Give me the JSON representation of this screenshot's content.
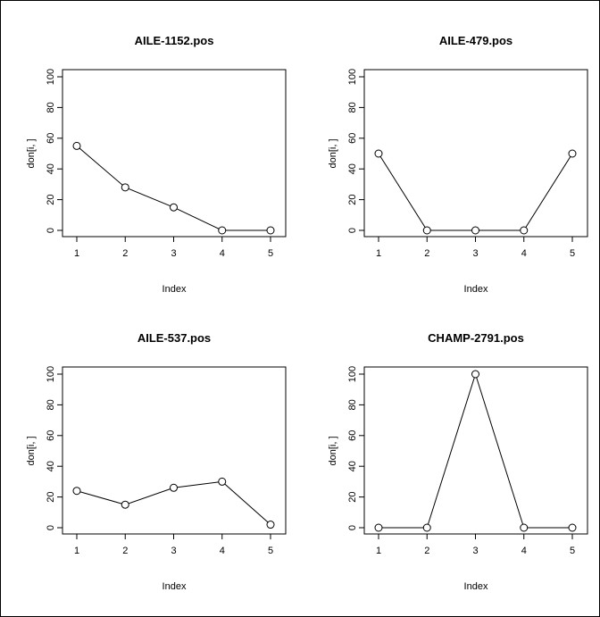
{
  "chart_data": [
    {
      "type": "line",
      "title": "AILE-1152.pos",
      "xlabel": "Index",
      "ylabel": "don[i, ]",
      "x": [
        1,
        2,
        3,
        4,
        5
      ],
      "values": [
        55,
        28,
        15,
        0,
        0
      ],
      "xlim": [
        1,
        5
      ],
      "ylim": [
        0,
        100
      ],
      "xticks": [
        "1",
        "2",
        "3",
        "4",
        "5"
      ],
      "yticks": [
        "0",
        "20",
        "40",
        "60",
        "80",
        "100"
      ],
      "marker": "open-circle",
      "grid": false
    },
    {
      "type": "line",
      "title": "AILE-479.pos",
      "xlabel": "Index",
      "ylabel": "don[i, ]",
      "x": [
        1,
        2,
        3,
        4,
        5
      ],
      "values": [
        50,
        0,
        0,
        0,
        50
      ],
      "xlim": [
        1,
        5
      ],
      "ylim": [
        0,
        100
      ],
      "xticks": [
        "1",
        "2",
        "3",
        "4",
        "5"
      ],
      "yticks": [
        "0",
        "20",
        "40",
        "60",
        "80",
        "100"
      ],
      "marker": "open-circle",
      "grid": false
    },
    {
      "type": "line",
      "title": "AILE-537.pos",
      "xlabel": "Index",
      "ylabel": "don[i, ]",
      "x": [
        1,
        2,
        3,
        4,
        5
      ],
      "values": [
        24,
        15,
        26,
        30,
        2
      ],
      "xlim": [
        1,
        5
      ],
      "ylim": [
        0,
        100
      ],
      "xticks": [
        "1",
        "2",
        "3",
        "4",
        "5"
      ],
      "yticks": [
        "0",
        "20",
        "40",
        "60",
        "80",
        "100"
      ],
      "marker": "open-circle",
      "grid": false
    },
    {
      "type": "line",
      "title": "CHAMP-2791.pos",
      "xlabel": "Index",
      "ylabel": "don[i, ]",
      "x": [
        1,
        2,
        3,
        4,
        5
      ],
      "values": [
        0,
        0,
        100,
        0,
        0
      ],
      "xlim": [
        1,
        5
      ],
      "ylim": [
        0,
        100
      ],
      "xticks": [
        "1",
        "2",
        "3",
        "4",
        "5"
      ],
      "yticks": [
        "0",
        "20",
        "40",
        "60",
        "80",
        "100"
      ],
      "marker": "open-circle",
      "grid": false
    }
  ]
}
